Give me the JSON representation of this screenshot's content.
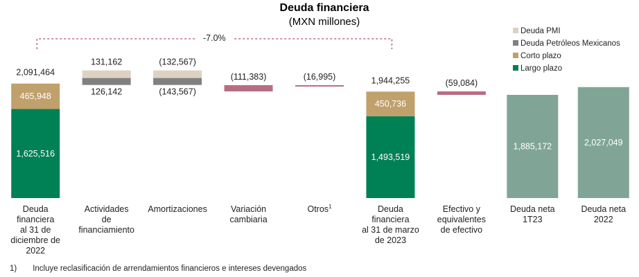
{
  "title": "Deuda financiera",
  "subtitle": "(MXN millones)",
  "variation_label": "-7.0%",
  "colors": {
    "largo": "#008055",
    "corto": "#c0a06b",
    "pemex": "#808080",
    "pmi": "#ddd2c2",
    "negative": "#b76e82",
    "neta": "#80a596",
    "dashed": "#9b2247"
  },
  "legend": [
    {
      "label": "Deuda PMI",
      "color": "#ddd2c2"
    },
    {
      "label": "Deuda Petróleos Mexicanos",
      "color": "#808080"
    },
    {
      "label": "Corto plazo",
      "color": "#c0a06b"
    },
    {
      "label": "Largo plazo",
      "color": "#008055"
    }
  ],
  "chart_data": {
    "type": "bar",
    "title": "Deuda financiera",
    "subtitle": "(MXN millones)",
    "categories": [
      "Deuda financiera al 31 de diciembre de 2022",
      "Actividades de financiamiento",
      "Amortizaciones",
      "Variación cambiaria",
      "Otros",
      "Deuda financiera al 31 de marzo de 2023",
      "Efectivo y equivalentes de efectivo",
      "Deuda neta 1T23",
      "Deuda neta 2022"
    ],
    "category_lines": [
      [
        "Deuda",
        "financiera",
        "al 31 de",
        "diciembre de",
        "2022"
      ],
      [
        "Actividades",
        "de",
        "financiamiento"
      ],
      [
        "Amortizaciones"
      ],
      [
        "Variación",
        "cambiaria"
      ],
      [
        "Otros"
      ],
      [
        "Deuda",
        "financiera",
        "al 31 de marzo",
        "de 2023"
      ],
      [
        "Efectivo y",
        "equivalentes",
        "de efectivo"
      ],
      [
        "Deuda neta",
        "1T23"
      ],
      [
        "Deuda neta",
        "2022"
      ]
    ],
    "category_superscripts": [
      "",
      "",
      "",
      "",
      "1",
      "",
      "",
      "",
      ""
    ],
    "totals": [
      {
        "category": 0,
        "total_label": "2,091,464",
        "largo_plazo": 1625516,
        "largo_label": "1,625,516",
        "corto_plazo": 465948,
        "corto_label": "465,948"
      },
      {
        "category": 5,
        "total_label": "1,944,255",
        "largo_plazo": 1493519,
        "largo_label": "1,493,519",
        "corto_plazo": 450736,
        "corto_label": "450,736"
      }
    ],
    "changes": [
      {
        "category": 1,
        "pmi": 131162,
        "pmi_label": "131,162",
        "pemex": 126142,
        "pemex_label": "126,142"
      },
      {
        "category": 2,
        "pmi": -132567,
        "pmi_label": "(132,567)",
        "pemex": -143567,
        "pemex_label": "(143,567)"
      },
      {
        "category": 3,
        "value": -111383,
        "label": "(111,383)"
      },
      {
        "category": 4,
        "value": -16995,
        "label": "(16,995)"
      },
      {
        "category": 6,
        "value": -59084,
        "label": "(59,084)"
      }
    ],
    "net_debt": [
      {
        "category": 7,
        "value": 1885172,
        "label": "1,885,172"
      },
      {
        "category": 8,
        "value": 2027049,
        "label": "2,027,049"
      }
    ],
    "variation": "-7.0%",
    "ylim": [
      0,
      2100000
    ],
    "grid": false,
    "legend_position": "top-right"
  },
  "footnote": {
    "marker": "1)",
    "text": "Incluye reclasificación de arrendamientos financieros e intereses devengados"
  }
}
